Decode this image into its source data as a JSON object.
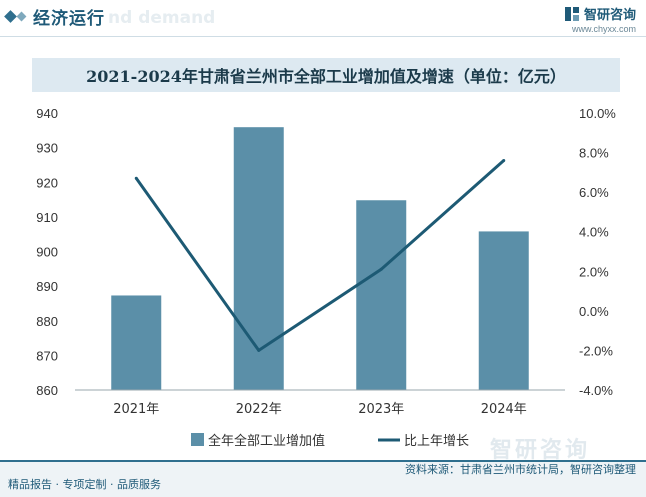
{
  "header": {
    "section_title": "经济运行",
    "watermark_text": "nd demand",
    "brand_name": "智研咨询",
    "brand_url": "www.chyxx.com"
  },
  "chart_title": "2021-2024年甘肃省兰州市全部工业增加值及增速（单位：亿元）",
  "chart_data": {
    "type": "bar",
    "title": "2021-2024年甘肃省兰州市全部工业增加值及增速（单位：亿元）",
    "categories": [
      "2021年",
      "2022年",
      "2023年",
      "2024年"
    ],
    "series": [
      {
        "name": "全年全部工业增加值",
        "type": "bar",
        "axis": "left",
        "values": [
          887.3,
          935.9,
          914.8,
          905.8
        ],
        "color": "#5b8fa8"
      },
      {
        "name": "比上年增长",
        "type": "line",
        "axis": "right",
        "values": [
          6.7,
          -2.0,
          2.1,
          7.6
        ],
        "color": "#1d5a74"
      }
    ],
    "y_left": {
      "min": 860,
      "max": 940,
      "ticks": [
        860,
        870,
        880,
        890,
        900,
        910,
        920,
        930,
        940
      ]
    },
    "y_right": {
      "min": -4,
      "max": 10,
      "ticks": [
        "-4.0%",
        "-2.0%",
        "0.0%",
        "2.0%",
        "4.0%",
        "6.0%",
        "8.0%",
        "10.0%"
      ],
      "tick_values": [
        -4,
        -2,
        0,
        2,
        4,
        6,
        8,
        10
      ]
    },
    "legend": [
      "全年全部工业增加值",
      "比上年增长"
    ],
    "legend_position": "bottom",
    "grid": false
  },
  "footer": {
    "left": "精品报告 · 专项定制 · 品质服务",
    "source": "资料来源：甘肃省兰州市统计局，智研咨询整理",
    "bigmark": "智研咨询"
  }
}
